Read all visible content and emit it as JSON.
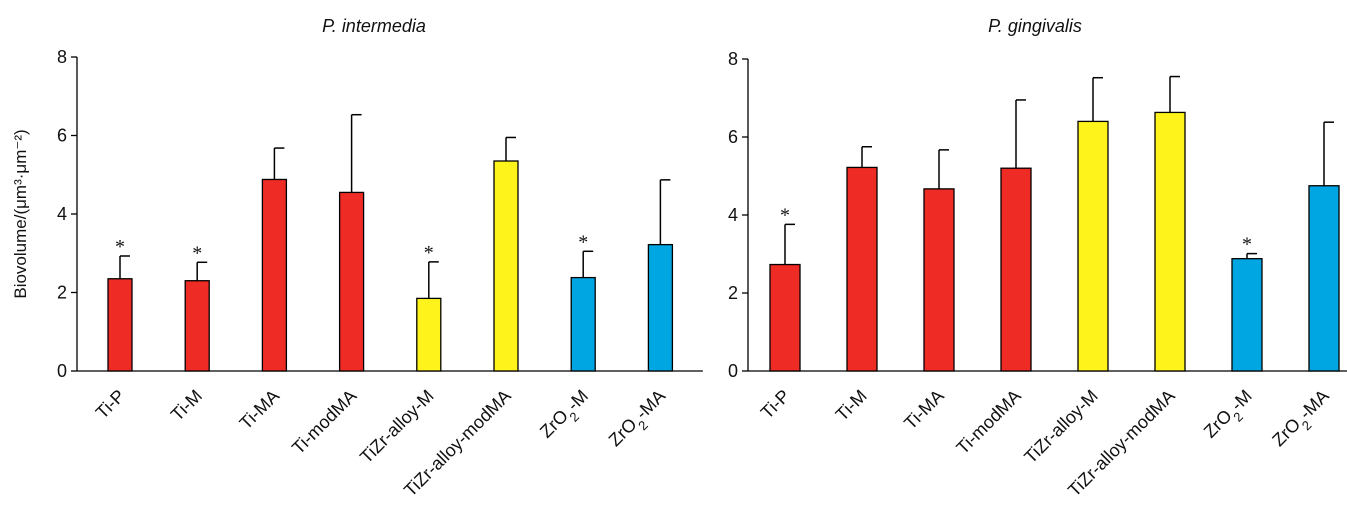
{
  "colors": {
    "ti": "#ee2b24",
    "tizr": "#fff31c",
    "zro2": "#00a6e2"
  },
  "ylabel": "Biovolume/(μm³·μm⁻²)",
  "categories": [
    {
      "label": "Ti-P",
      "group": "ti"
    },
    {
      "label": "Ti-M",
      "group": "ti"
    },
    {
      "label": "Ti-MA",
      "group": "ti"
    },
    {
      "label": "Ti-modMA",
      "group": "ti"
    },
    {
      "label": "TiZr-alloy-M",
      "group": "tizr"
    },
    {
      "label": "TiZr-alloy-modMA",
      "group": "tizr"
    },
    {
      "label": "ZrO₂-M",
      "group": "zro2"
    },
    {
      "label": "ZrO₂-MA",
      "group": "zro2"
    }
  ],
  "chart_data": [
    {
      "type": "bar",
      "title": "P. intermedia",
      "ylabel": "Biovolume/(μm³·μm⁻²)",
      "ylim": [
        0,
        8
      ],
      "yticks": [
        0,
        2,
        4,
        6,
        8
      ],
      "categories": [
        "Ti-P",
        "Ti-M",
        "Ti-MA",
        "Ti-modMA",
        "TiZr-alloy-M",
        "TiZr-alloy-modMA",
        "ZrO₂-M",
        "ZrO₂-MA"
      ],
      "values": [
        2.35,
        2.3,
        4.88,
        4.55,
        1.85,
        5.35,
        2.38,
        3.22
      ],
      "errors": [
        0.58,
        0.47,
        0.8,
        1.98,
        0.93,
        0.6,
        0.67,
        1.65
      ],
      "significant": [
        true,
        true,
        false,
        false,
        true,
        false,
        true,
        false
      ],
      "significance_marker": "*",
      "grid": false
    },
    {
      "type": "bar",
      "title": "P. gingivalis",
      "ylabel": "",
      "ylim": [
        0,
        8
      ],
      "yticks": [
        0,
        2,
        4,
        6,
        8
      ],
      "categories": [
        "Ti-P",
        "Ti-M",
        "Ti-MA",
        "Ti-modMA",
        "TiZr-alloy-M",
        "TiZr-alloy-modMA",
        "ZrO₂-M",
        "ZrO₂-MA"
      ],
      "values": [
        2.73,
        5.22,
        4.67,
        5.2,
        6.4,
        6.63,
        2.88,
        4.75
      ],
      "errors": [
        1.03,
        0.53,
        1.0,
        1.75,
        1.12,
        0.92,
        0.13,
        1.63
      ],
      "significant": [
        true,
        false,
        false,
        false,
        false,
        false,
        true,
        false
      ],
      "significance_marker": "*",
      "grid": false
    }
  ]
}
